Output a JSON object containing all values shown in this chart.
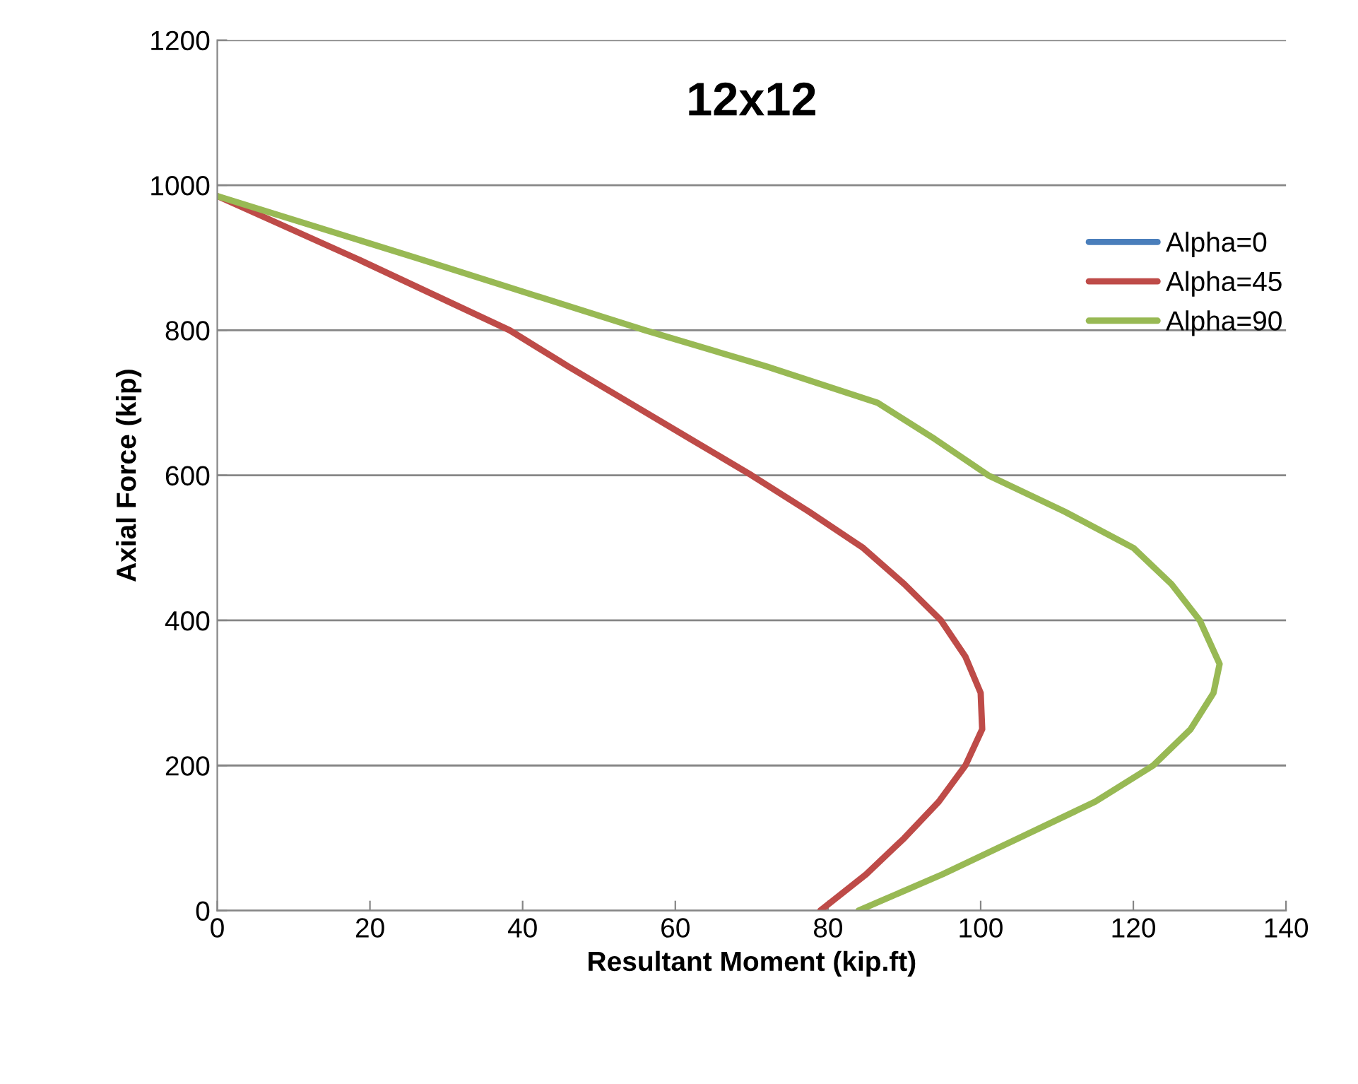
{
  "chart_data": {
    "type": "line",
    "title": "12x12",
    "xlabel": "Resultant Moment (kip.ft)",
    "ylabel": "Axial Force (kip)",
    "xlim": [
      0,
      140
    ],
    "xticks": [
      0,
      20,
      40,
      60,
      80,
      100,
      120,
      140
    ],
    "ylim": [
      0,
      1200
    ],
    "yticks": [
      0,
      200,
      400,
      600,
      800,
      1000,
      1200
    ],
    "grid": "y",
    "legend": "right",
    "marker": "none",
    "line_style": "solid",
    "series": [
      {
        "name": "Alpha=0",
        "color": "#4a7ebb"
      },
      {
        "name": "Alpha=45",
        "color": "#be4b48",
        "x": [
          0,
          18,
          38.3,
          46,
          54,
          62,
          70,
          77.5,
          84.6,
          90,
          94.8,
          98,
          100,
          100.2,
          98,
          94.5,
          90,
          85,
          79
        ],
        "values": [
          985,
          900,
          800,
          750,
          700,
          650,
          600,
          550,
          500,
          450,
          400,
          350,
          300,
          250,
          200,
          150,
          100,
          50,
          0
        ]
      },
      {
        "name": "Alpha=90",
        "color": "#98b954",
        "x": [
          0,
          26,
          56,
          72,
          86.5,
          94,
          101,
          111,
          120,
          125,
          128.7,
          131.3,
          130.5,
          127.5,
          122.6,
          115,
          105,
          95,
          84
        ],
        "values": [
          985,
          900,
          800,
          750,
          700,
          650,
          600,
          550,
          500,
          450,
          400,
          340,
          300,
          250,
          200,
          150,
          100,
          50,
          0
        ]
      }
    ]
  }
}
